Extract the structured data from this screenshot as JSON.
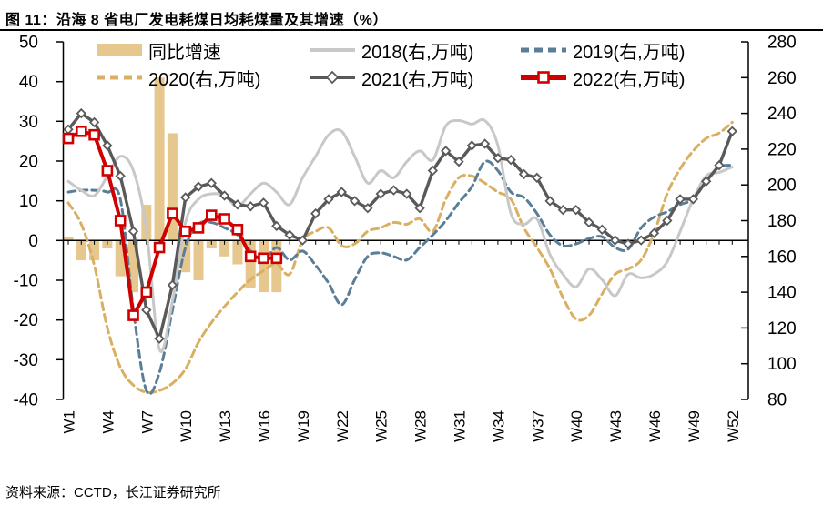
{
  "title": "图 11：沿海 8 省电厂发电耗煤日均耗煤量及其增速（%）",
  "source": "资料来源：CCTD，长江证券研究所",
  "colors": {
    "bar": "#e6c88f",
    "y2018": "#c8c8c8",
    "y2019": "#5b7e98",
    "y2020": "#d9af62",
    "y2021": "#595959",
    "y2022": "#d10000",
    "axis": "#000000"
  },
  "legend": [
    {
      "label": "同比增速",
      "type": "bar",
      "color": "#e6c88f"
    },
    {
      "label": "2018(右,万吨)",
      "type": "line",
      "color": "#c8c8c8"
    },
    {
      "label": "2019(右,万吨)",
      "type": "dashed",
      "color": "#5b7e98"
    },
    {
      "label": "2020(右,万吨)",
      "type": "dashed",
      "color": "#d9af62"
    },
    {
      "label": "2021(右,万吨)",
      "type": "line-diamond",
      "color": "#595959"
    },
    {
      "label": "2022(右,万吨)",
      "type": "line-square",
      "color": "#d10000"
    }
  ],
  "chart_data": {
    "type": "mixed-bar-line",
    "weeks": 52,
    "x_tick_labels": [
      "W1",
      "W4",
      "W7",
      "W10",
      "W13",
      "W16",
      "W19",
      "W22",
      "W25",
      "W28",
      "W31",
      "W34",
      "W37",
      "W40",
      "W43",
      "W46",
      "W49",
      "W52"
    ],
    "left_axis": {
      "min": -40,
      "max": 50,
      "step": 10,
      "unit": "%"
    },
    "right_axis": {
      "min": 80,
      "max": 280,
      "step": 20,
      "unit": "万吨"
    },
    "bars": {
      "name": "同比增速",
      "axis": "left",
      "color": "#e6c88f",
      "values": [
        1,
        -5,
        -5,
        -2,
        -9,
        -13,
        9,
        41,
        27,
        -8,
        -10,
        -2,
        -4,
        -6,
        -12,
        -13,
        -13
      ]
    },
    "series": [
      {
        "name": "2018(右,万吨)",
        "axis": "right",
        "line": "solid",
        "marker": "none",
        "smooth": true,
        "color": "#c8c8c8",
        "width": 3,
        "values": [
          202,
          197,
          194,
          205,
          216,
          208,
          175,
          108,
          135,
          179,
          192,
          195,
          194,
          188,
          195,
          201,
          196,
          189,
          204,
          216,
          228,
          230,
          216,
          201,
          208,
          204,
          213,
          219,
          214,
          233,
          236,
          234,
          236,
          222,
          184,
          178,
          181,
          161,
          150,
          143,
          153,
          147,
          138,
          150,
          148,
          150,
          157,
          174,
          192,
          205,
          207,
          210
        ]
      },
      {
        "name": "2019(右,万吨)",
        "axis": "right",
        "line": "dashed",
        "marker": "none",
        "smooth": true,
        "color": "#5b7e98",
        "width": 3,
        "values": [
          196,
          197,
          197,
          196,
          192,
          130,
          85,
          95,
          130,
          165,
          178,
          179,
          176,
          172,
          163,
          158,
          165,
          158,
          163,
          155,
          145,
          133,
          147,
          160,
          162,
          160,
          158,
          165,
          172,
          180,
          190,
          199,
          213,
          208,
          196,
          193,
          184,
          172,
          166,
          167,
          170,
          171,
          165,
          164,
          176,
          182,
          185,
          189,
          192,
          202,
          210,
          211
        ]
      },
      {
        "name": "2020(右,万吨)",
        "axis": "right",
        "line": "dashed",
        "marker": "none",
        "smooth": true,
        "color": "#d9af62",
        "width": 3,
        "values": [
          190,
          178,
          155,
          120,
          98,
          88,
          84,
          85,
          89,
          97,
          112,
          123,
          132,
          140,
          147,
          152,
          156,
          150,
          169,
          174,
          176,
          166,
          167,
          174,
          176,
          179,
          178,
          181,
          174,
          192,
          204,
          205,
          201,
          196,
          192,
          176,
          165,
          153,
          137,
          125,
          127,
          139,
          150,
          153,
          158,
          173,
          195,
          209,
          219,
          226,
          229,
          235
        ]
      },
      {
        "name": "2021(右,万吨)",
        "axis": "right",
        "line": "solid",
        "marker": "diamond",
        "smooth": false,
        "color": "#595959",
        "width": 3.4,
        "values": [
          231,
          240,
          235,
          222,
          205,
          174,
          130,
          114,
          144,
          193,
          199,
          201,
          194,
          189,
          188,
          190,
          177,
          172,
          169,
          184,
          192,
          196,
          191,
          187,
          195,
          197,
          195,
          187,
          208,
          219,
          213,
          222,
          223,
          215,
          214,
          206,
          204,
          191,
          186,
          186,
          179,
          175,
          169,
          167,
          169,
          173,
          180,
          192,
          192,
          202,
          211,
          230
        ]
      },
      {
        "name": "2022(右,万吨)",
        "axis": "right",
        "line": "solid",
        "marker": "square",
        "smooth": false,
        "color": "#d10000",
        "width": 4,
        "values": [
          226,
          230,
          228,
          208,
          180,
          127,
          140,
          165,
          184,
          174,
          176,
          183,
          181,
          175,
          160,
          159,
          159
        ]
      }
    ]
  }
}
